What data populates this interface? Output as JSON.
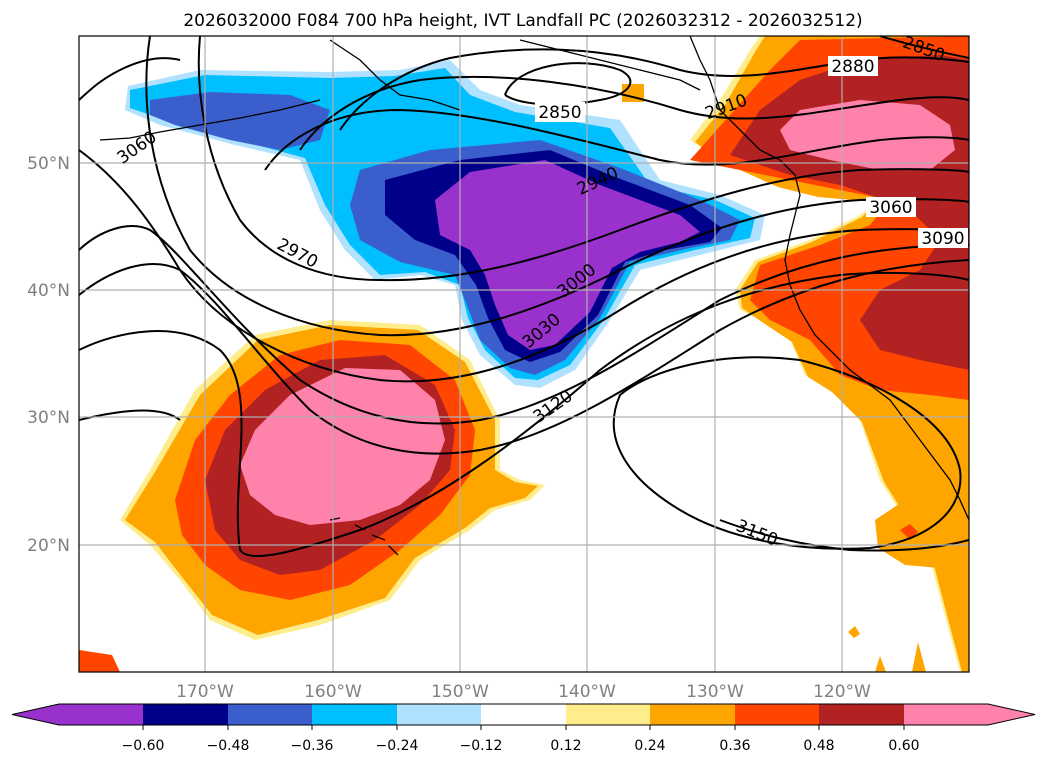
{
  "title": "2026032000 F084 700 hPa height, IVT Landfall PC (2026032312 - 2026032512)",
  "map": {
    "latitude_labels": [
      "50°N",
      "40°N",
      "30°N",
      "20°N"
    ],
    "longitude_labels": [
      "170°W",
      "160°W",
      "150°W",
      "140°W",
      "130°W",
      "120°W"
    ],
    "contour_labels": [
      "2850",
      "2880",
      "2910",
      "2940",
      "2850",
      "2970",
      "3000",
      "3030",
      "3060",
      "3060",
      "3090",
      "3120",
      "3150"
    ]
  },
  "colorbar": {
    "tick_labels": [
      "−0.60",
      "−0.48",
      "−0.36",
      "−0.24",
      "−0.12",
      "0.12",
      "0.24",
      "0.36",
      "0.48",
      "0.60"
    ],
    "colors": [
      "#9932cc",
      "#00008b",
      "#3a5fcd",
      "#00bfff",
      "#b0e2ff",
      "#ffffff",
      "#ffec8b",
      "#ffa500",
      "#ff4500",
      "#b22222",
      "#ff82ab"
    ]
  },
  "colors": {
    "purple": "#9932cc",
    "navy": "#00008b",
    "royal_blue": "#3a5fcd",
    "deep_sky": "#00bfff",
    "light_sky": "#b0e2ff",
    "white": "#ffffff",
    "light_yellow": "#ffec8b",
    "orange": "#ffa500",
    "orange_red": "#ff4500",
    "firebrick": "#b22222",
    "pink": "#ff82ab"
  }
}
